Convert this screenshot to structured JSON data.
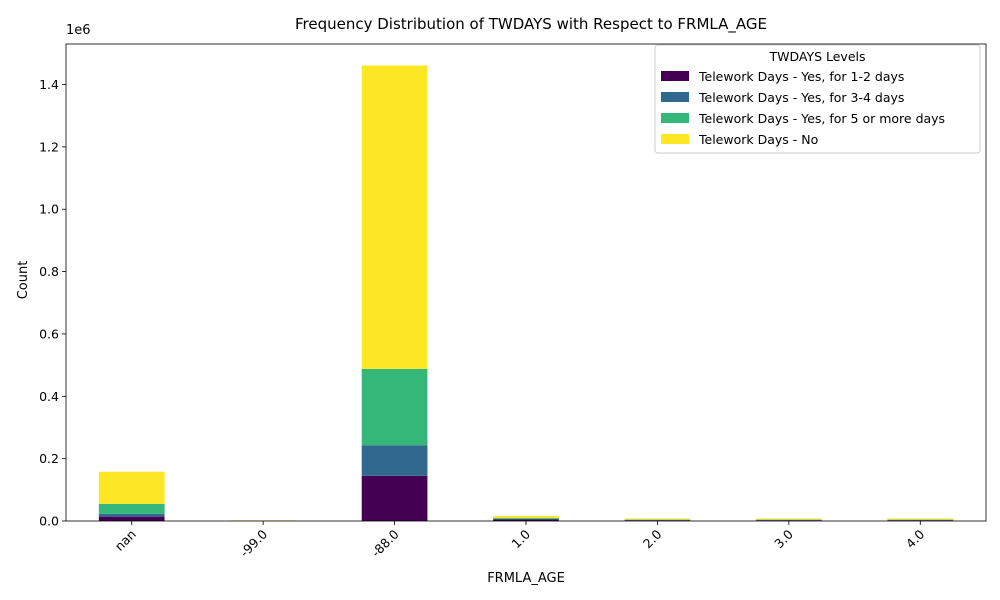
{
  "chart_data": {
    "type": "bar",
    "stacked": true,
    "title": "Frequency Distribution of TWDAYS with Respect to FRMLA_AGE",
    "xlabel": "FRMLA_AGE",
    "ylabel": "Count",
    "y_scale_label": "1e6",
    "y_scale_factor": 1000000,
    "ylim": [
      0,
      1530000
    ],
    "yticks": [
      0,
      0.2,
      0.4,
      0.6,
      0.8,
      1.0,
      1.2,
      1.4
    ],
    "grid": false,
    "legend_title": "TWDAYS Levels",
    "legend_placement": "top-right",
    "categories": [
      "nan",
      "-99.0",
      "-88.0",
      "1.0",
      "2.0",
      "3.0",
      "4.0"
    ],
    "series": [
      {
        "name": "Telework Days - Yes, for 1-2 days",
        "color": "#440154",
        "values": [
          14000,
          200,
          145000,
          5000,
          2500,
          2500,
          2500
        ]
      },
      {
        "name": "Telework Days - Yes, for 3-4 days",
        "color": "#31688e",
        "values": [
          9000,
          100,
          98000,
          2000,
          800,
          800,
          800
        ]
      },
      {
        "name": "Telework Days - Yes, for 5 or more days",
        "color": "#35b779",
        "values": [
          32000,
          200,
          245000,
          2500,
          1200,
          1200,
          1200
        ]
      },
      {
        "name": "Telework Days - No",
        "color": "#fde725",
        "values": [
          103000,
          1500,
          973000,
          6500,
          3500,
          3500,
          3500
        ]
      }
    ]
  }
}
